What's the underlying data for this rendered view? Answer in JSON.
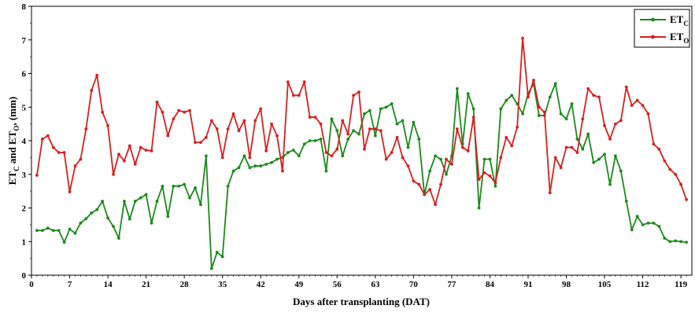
{
  "chart_data": {
    "type": "line",
    "title": "",
    "xlabel": "Days after transplanting (DAT)",
    "ylabel": {
      "main": "ET",
      "sub1": "C",
      "mid": " and ET",
      "sub2": "O",
      "tail": ", (mm)"
    },
    "xlim": [
      0,
      121
    ],
    "ylim": [
      0,
      8
    ],
    "xticks": [
      0,
      7,
      14,
      21,
      28,
      35,
      42,
      49,
      56,
      63,
      70,
      77,
      84,
      91,
      98,
      105,
      112,
      119
    ],
    "yticks": [
      0,
      1,
      2,
      3,
      4,
      5,
      6,
      7,
      8
    ],
    "grid": false,
    "legend_position": "top-right",
    "x": [
      1,
      2,
      3,
      4,
      5,
      6,
      7,
      8,
      9,
      10,
      11,
      12,
      13,
      14,
      15,
      16,
      17,
      18,
      19,
      20,
      21,
      22,
      23,
      24,
      25,
      26,
      27,
      28,
      29,
      30,
      31,
      32,
      33,
      34,
      35,
      36,
      37,
      38,
      39,
      40,
      41,
      42,
      43,
      44,
      45,
      46,
      47,
      48,
      49,
      50,
      51,
      52,
      53,
      54,
      55,
      56,
      57,
      58,
      59,
      60,
      61,
      62,
      63,
      64,
      65,
      66,
      67,
      68,
      69,
      70,
      71,
      72,
      73,
      74,
      75,
      76,
      77,
      78,
      79,
      80,
      81,
      82,
      83,
      84,
      85,
      86,
      87,
      88,
      89,
      90,
      91,
      92,
      93,
      94,
      95,
      96,
      97,
      98,
      99,
      100,
      101,
      102,
      103,
      104,
      105,
      106,
      107,
      108,
      109,
      110,
      111,
      112,
      113,
      114,
      115,
      116,
      117,
      118,
      119,
      120
    ],
    "series": [
      {
        "name": "ET",
        "name_sub": "C",
        "color": "#1a8a1a",
        "values": [
          1.33,
          1.33,
          1.4,
          1.33,
          1.33,
          0.98,
          1.37,
          1.25,
          1.55,
          1.68,
          1.85,
          1.95,
          2.2,
          1.7,
          1.45,
          1.1,
          2.2,
          1.67,
          2.2,
          2.3,
          2.4,
          1.55,
          2.2,
          2.65,
          1.75,
          2.65,
          2.65,
          2.7,
          2.3,
          2.6,
          2.1,
          3.55,
          0.2,
          0.68,
          0.55,
          2.65,
          3.1,
          3.2,
          3.55,
          3.2,
          3.25,
          3.25,
          3.3,
          3.35,
          3.45,
          3.5,
          3.65,
          3.72,
          3.55,
          3.9,
          4.0,
          4.0,
          4.05,
          3.1,
          4.65,
          4.3,
          3.55,
          4.05,
          4.3,
          4.2,
          4.8,
          4.9,
          4.15,
          4.95,
          5.0,
          5.1,
          4.5,
          4.6,
          3.8,
          4.55,
          4.05,
          2.4,
          3.1,
          3.55,
          3.45,
          3.0,
          3.55,
          5.55,
          3.9,
          5.4,
          4.95,
          2.0,
          3.45,
          3.45,
          2.65,
          4.95,
          5.2,
          5.35,
          5.1,
          4.8,
          5.4,
          5.7,
          4.75,
          4.75,
          5.3,
          5.7,
          4.8,
          4.65,
          5.1,
          4.05,
          3.75,
          4.2,
          3.35,
          3.45,
          3.6,
          2.7,
          3.55,
          3.1,
          2.2,
          1.35,
          1.75,
          1.5,
          1.55,
          1.55,
          1.45,
          1.1,
          1.0,
          1.02,
          1.0,
          0.98
        ]
      },
      {
        "name": "ET",
        "name_sub": "O",
        "color": "#d81f1f",
        "values": [
          2.97,
          4.05,
          4.15,
          3.8,
          3.65,
          3.65,
          2.48,
          3.25,
          3.45,
          4.35,
          5.5,
          5.95,
          4.85,
          4.45,
          3.0,
          3.6,
          3.4,
          3.85,
          3.3,
          3.8,
          3.72,
          3.7,
          5.15,
          4.85,
          4.15,
          4.65,
          4.9,
          4.85,
          4.9,
          3.95,
          3.95,
          4.1,
          4.6,
          4.35,
          3.5,
          4.35,
          4.8,
          4.3,
          4.6,
          3.5,
          4.6,
          4.95,
          3.7,
          4.5,
          4.15,
          3.1,
          5.75,
          5.35,
          5.35,
          5.75,
          4.7,
          4.7,
          4.5,
          3.65,
          3.55,
          3.75,
          4.6,
          4.2,
          5.35,
          5.45,
          3.75,
          4.35,
          4.35,
          4.3,
          3.45,
          3.65,
          4.1,
          3.5,
          3.25,
          2.8,
          2.7,
          2.4,
          2.55,
          2.1,
          2.7,
          3.45,
          3.3,
          4.35,
          3.8,
          3.7,
          4.7,
          2.85,
          3.05,
          2.95,
          2.75,
          3.5,
          4.1,
          3.85,
          4.4,
          7.05,
          5.3,
          5.8,
          5.0,
          4.85,
          2.45,
          3.5,
          3.2,
          3.8,
          3.8,
          3.65,
          4.65,
          5.55,
          5.35,
          5.3,
          4.45,
          4.05,
          4.5,
          4.6,
          5.6,
          5.05,
          5.2,
          5.05,
          4.8,
          3.9,
          3.75,
          3.4,
          3.15,
          3.0,
          2.7,
          2.25
        ]
      }
    ]
  }
}
